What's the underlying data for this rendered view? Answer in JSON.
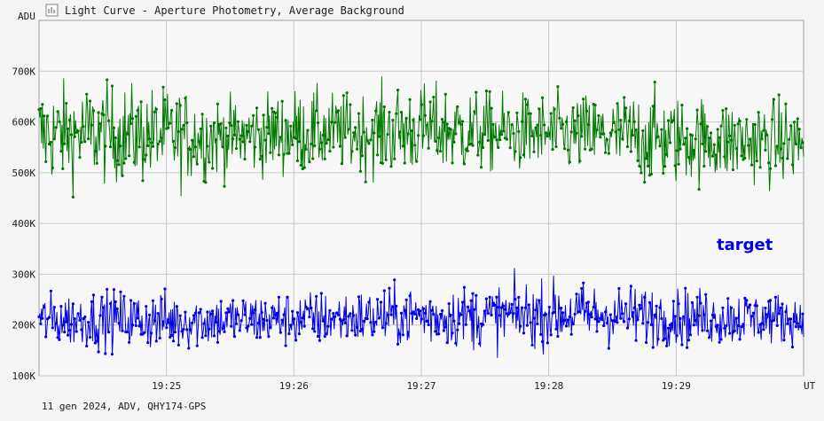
{
  "window": {
    "title": "Light Curve - Aperture Photometry, Average Background",
    "icon": "chart-icon"
  },
  "footer": {
    "info": "11 gen 2024, ADV, QHY174-GPS"
  },
  "chart_data": {
    "type": "line",
    "title": "Light Curve - Aperture Photometry, Average Background",
    "ylabel": "ADU",
    "xlabel": "UT",
    "ylim": [
      100000,
      800000
    ],
    "xlim": [
      "19:24:00",
      "19:30:00"
    ],
    "grid": true,
    "y_ticks": [
      {
        "value": 100000,
        "label": "100K"
      },
      {
        "value": 200000,
        "label": "200K"
      },
      {
        "value": 300000,
        "label": "300K"
      },
      {
        "value": 400000,
        "label": "400K"
      },
      {
        "value": 500000,
        "label": "500K"
      },
      {
        "value": 600000,
        "label": "600K"
      },
      {
        "value": 700000,
        "label": "700K"
      }
    ],
    "x_ticks": [
      {
        "value": "19:25:00",
        "label": "19:25"
      },
      {
        "value": "19:26:00",
        "label": "19:26"
      },
      {
        "value": "19:27:00",
        "label": "19:27"
      },
      {
        "value": "19:28:00",
        "label": "19:28"
      },
      {
        "value": "19:29:00",
        "label": "19:29"
      }
    ],
    "series": [
      {
        "name": "",
        "color": "#007800",
        "x": [
          "19:24:00",
          "19:24:30",
          "19:25:00",
          "19:25:30",
          "19:26:00",
          "19:26:30",
          "19:27:00",
          "19:27:30",
          "19:28:00",
          "19:28:30",
          "19:29:00",
          "19:29:30",
          "19:30:00"
        ],
        "mean": [
          575000,
          578000,
          572000,
          570000,
          580000,
          578000,
          585000,
          580000,
          576000,
          574000,
          565000,
          562000,
          560000
        ],
        "min": [
          385000,
          420000,
          415000,
          455000,
          450000,
          460000,
          425000,
          460000,
          455000,
          450000,
          395000,
          420000,
          440000
        ],
        "max": [
          730000,
          725000,
          720000,
          715000,
          730000,
          755000,
          720000,
          715000,
          750000,
          725000,
          700000,
          690000,
          700000
        ]
      },
      {
        "name": "target",
        "color": "#0000e6",
        "x": [
          "19:24:00",
          "19:24:30",
          "19:25:00",
          "19:25:30",
          "19:26:00",
          "19:26:30",
          "19:27:00",
          "19:27:30",
          "19:28:00",
          "19:28:30",
          "19:29:00",
          "19:29:30",
          "19:30:00"
        ],
        "mean": [
          210000,
          212000,
          208000,
          210000,
          212000,
          214000,
          218000,
          216000,
          222000,
          220000,
          216000,
          214000,
          212000
        ],
        "min": [
          130000,
          125000,
          118000,
          130000,
          128000,
          130000,
          125000,
          120000,
          115000,
          125000,
          128000,
          130000,
          140000
        ],
        "max": [
          305000,
          300000,
          305000,
          290000,
          300000,
          310000,
          340000,
          320000,
          320000,
          315000,
          310000,
          325000,
          300000
        ]
      }
    ],
    "annotations": [
      {
        "text": "target",
        "series": "target"
      }
    ]
  }
}
